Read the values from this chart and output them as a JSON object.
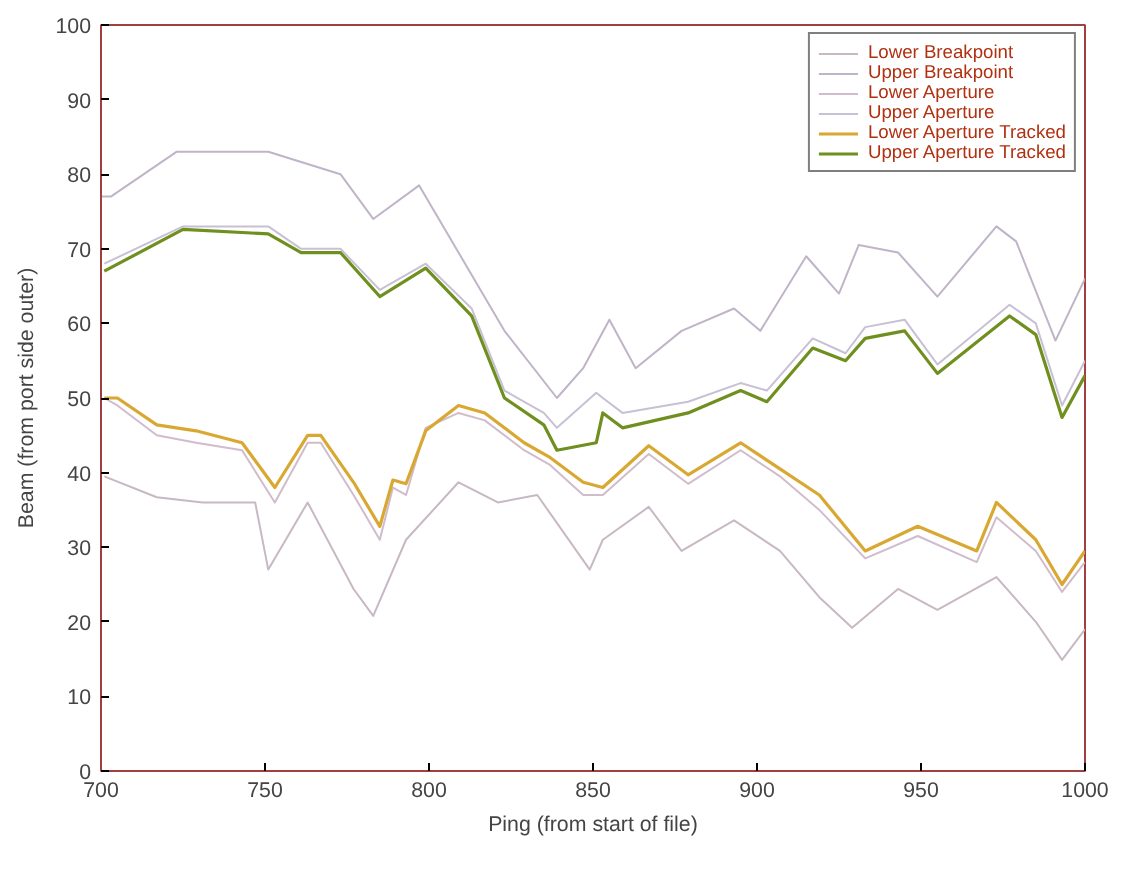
{
  "chart_data": {
    "type": "line",
    "xlabel": "Ping (from start of file)",
    "ylabel": "Beam (from port side outer)",
    "xlim": [
      700,
      1000
    ],
    "ylim": [
      0,
      100
    ],
    "xticks": [
      700,
      750,
      800,
      850,
      900,
      950,
      1000
    ],
    "yticks": [
      0,
      10,
      20,
      30,
      40,
      50,
      60,
      70,
      80,
      90,
      100
    ],
    "grid": false,
    "legend": "top right",
    "marker": "none",
    "line_style": "solid",
    "series": [
      {
        "name": "Lower Breakpoint",
        "color": "#c8b8c4",
        "x": [
          701,
          717,
          731,
          747,
          751,
          763,
          777,
          783,
          793,
          809,
          821,
          833,
          849,
          853,
          867,
          877,
          893,
          907,
          919,
          929,
          943,
          955,
          973,
          985,
          993,
          1000
        ],
        "values": [
          39.5,
          36.7,
          36,
          36,
          27,
          36,
          24.4,
          20.8,
          31,
          38.7,
          36,
          37,
          27,
          31,
          35.4,
          29.5,
          33.6,
          29.5,
          23.3,
          19.2,
          24.4,
          21.6,
          26,
          20,
          14.9,
          19
        ]
      },
      {
        "name": "Upper Breakpoint",
        "color": "#c0b4c8",
        "x": [
          700,
          703,
          723,
          751,
          773,
          783,
          797,
          823,
          839,
          847,
          855,
          863,
          877,
          893,
          901,
          915,
          925,
          931,
          943,
          955,
          973,
          979,
          991,
          1000
        ],
        "values": [
          77,
          77,
          83,
          83,
          80,
          74,
          78.5,
          59,
          50,
          54,
          60.5,
          54,
          59,
          62,
          59,
          69,
          64,
          70.5,
          69.5,
          63.6,
          73,
          71,
          57.7,
          66
        ]
      },
      {
        "name": "Lower Aperture",
        "color": "#d0bccc",
        "x": [
          701,
          705,
          717,
          729,
          743,
          753,
          763,
          767,
          777,
          785,
          789,
          793,
          799,
          809,
          817,
          829,
          837,
          847,
          853,
          867,
          879,
          895,
          907,
          919,
          933,
          949,
          967,
          973,
          985,
          993,
          1000
        ],
        "values": [
          50,
          49,
          45,
          44,
          43,
          36,
          44,
          44,
          37,
          31,
          38,
          37,
          46,
          48,
          47,
          43,
          41,
          37,
          37,
          42.5,
          38.5,
          43,
          39.5,
          35,
          28.5,
          31.5,
          28,
          34,
          29.5,
          24,
          28
        ]
      },
      {
        "name": "Upper Aperture",
        "color": "#c8c0d4",
        "x": [
          701,
          725,
          751,
          761,
          773,
          785,
          799,
          813,
          823,
          835,
          839,
          851,
          853,
          859,
          879,
          895,
          903,
          917,
          927,
          933,
          945,
          955,
          977,
          985,
          993,
          1000
        ],
        "values": [
          68,
          73,
          73,
          70,
          70,
          64.5,
          68,
          62,
          51,
          48,
          46,
          50.7,
          50,
          48,
          49.5,
          52,
          51,
          58,
          56,
          59.5,
          60.5,
          54.5,
          62.5,
          60,
          49,
          55
        ]
      },
      {
        "name": "Lower Aperture Tracked",
        "color": "#d8a832",
        "x": [
          701,
          705,
          717,
          729,
          743,
          753,
          763,
          767,
          777,
          785,
          789,
          793,
          799,
          809,
          817,
          829,
          837,
          847,
          853,
          867,
          879,
          895,
          907,
          919,
          933,
          949,
          967,
          973,
          985,
          993,
          1000
        ],
        "values": [
          50,
          50,
          46.4,
          45.6,
          44,
          38,
          45,
          45,
          38.7,
          32.8,
          39,
          38.5,
          45.6,
          49,
          48,
          44,
          42,
          38.7,
          38,
          43.6,
          39.7,
          44,
          40.5,
          37,
          29.5,
          32.8,
          29.5,
          36,
          31,
          25,
          29.5
        ]
      },
      {
        "name": "Upper Aperture Tracked",
        "color": "#6f8f1e",
        "x": [
          701,
          725,
          751,
          761,
          773,
          785,
          799,
          813,
          823,
          835,
          839,
          851,
          853,
          859,
          879,
          895,
          903,
          917,
          927,
          933,
          945,
          955,
          977,
          985,
          993,
          1000
        ],
        "values": [
          67,
          72.6,
          72,
          69.5,
          69.5,
          63.6,
          67.4,
          61,
          50,
          46.4,
          43,
          44,
          48,
          46,
          48,
          51,
          49.5,
          56.7,
          55,
          58,
          59,
          53.3,
          61,
          58.5,
          47.4,
          53
        ]
      }
    ]
  }
}
